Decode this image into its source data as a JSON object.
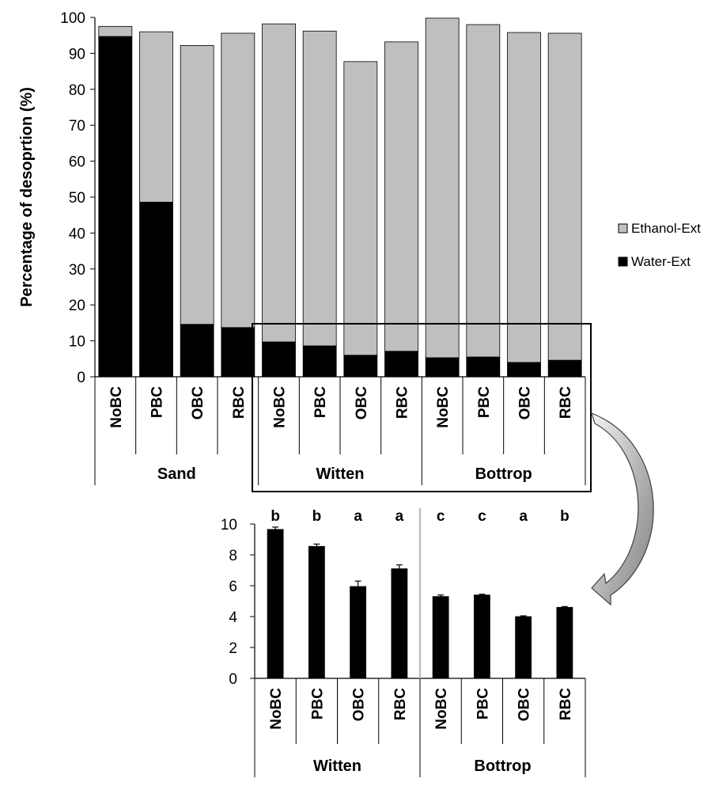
{
  "chart_data": [
    {
      "type": "bar",
      "stacked": true,
      "ylabel": "Percentage of desoprtion (%)",
      "ylim": [
        0,
        100
      ],
      "yticks": [
        0,
        10,
        20,
        30,
        40,
        50,
        60,
        70,
        80,
        90,
        100
      ],
      "categories": [
        "NoBC",
        "PBC",
        "OBC",
        "RBC",
        "NoBC",
        "PBC",
        "OBC",
        "RBC",
        "NoBC",
        "PBC",
        "OBC",
        "RBC"
      ],
      "groups": [
        "Sand",
        "Witten",
        "Bottrop"
      ],
      "legend_position": "right",
      "series": [
        {
          "name": "Water-Ext",
          "color": "#000000",
          "values": [
            94.7,
            48.6,
            14.6,
            13.7,
            9.7,
            8.6,
            6.0,
            7.1,
            5.3,
            5.5,
            4.0,
            4.6
          ]
        },
        {
          "name": "Ethanol-Ext",
          "color": "#bfbfbf",
          "values": [
            2.8,
            47.4,
            77.6,
            81.9,
            88.5,
            87.6,
            81.7,
            86.1,
            94.5,
            92.5,
            91.8,
            91.0
          ]
        }
      ]
    },
    {
      "type": "bar",
      "ylim": [
        0,
        10
      ],
      "yticks": [
        0,
        2,
        4,
        6,
        8,
        10
      ],
      "categories": [
        "NoBC",
        "PBC",
        "OBC",
        "RBC",
        "NoBC",
        "PBC",
        "OBC",
        "RBC"
      ],
      "groups": [
        "Witten",
        "Bottrop"
      ],
      "series": [
        {
          "color": "#000000",
          "values": [
            9.65,
            8.55,
            5.95,
            7.1,
            5.3,
            5.4,
            4.0,
            4.6
          ],
          "errors": [
            0.15,
            0.15,
            0.35,
            0.25,
            0.1,
            0.05,
            0.05,
            0.05
          ]
        }
      ],
      "annotations": [
        "b",
        "b",
        "a",
        "a",
        "c",
        "c",
        "a",
        "b"
      ]
    }
  ]
}
